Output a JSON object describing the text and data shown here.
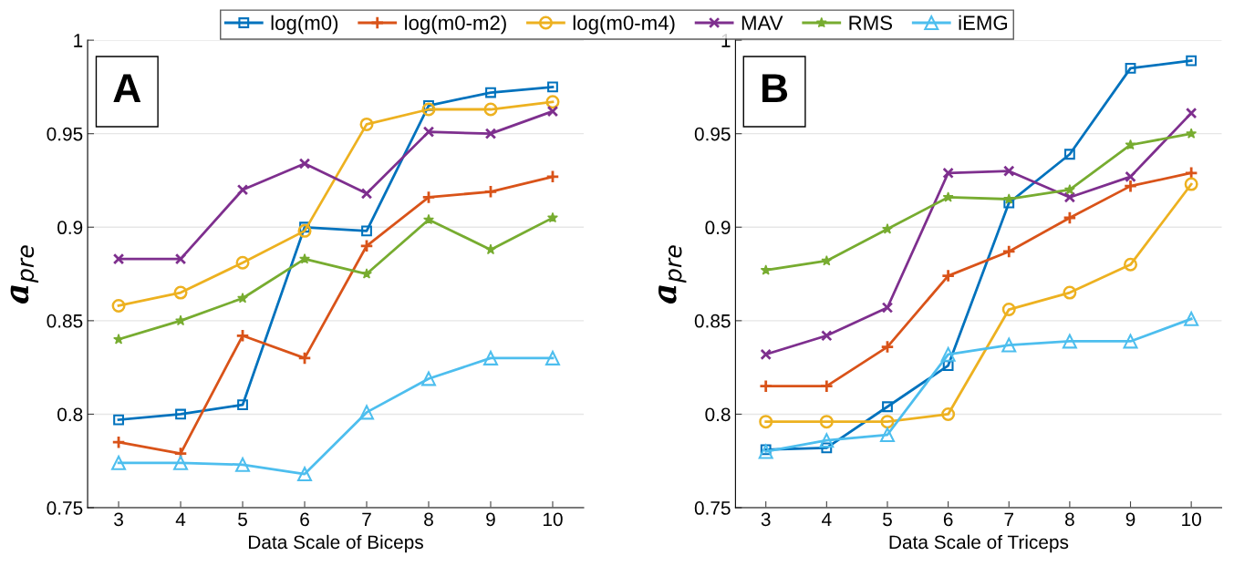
{
  "chart_data": [
    {
      "type": "line",
      "xlabel": "Data Scale of Biceps",
      "ylabel": "a$_{pre}$",
      "annotations": [
        "A"
      ],
      "x": [
        3,
        4,
        5,
        6,
        7,
        8,
        9,
        10
      ],
      "xlim": [
        2.5,
        10.5
      ],
      "xticks": [
        3,
        4,
        5,
        6,
        7,
        8,
        9,
        10
      ],
      "ylim": [
        0.75,
        1
      ],
      "yticks": [
        0.75,
        0.8,
        0.85,
        0.9,
        0.95,
        1
      ],
      "grid": "y",
      "legend": "top",
      "line_style": "solid",
      "series": [
        {
          "name": "log(m0)",
          "color": "#0072bd",
          "marker": "square",
          "values": [
            0.797,
            0.8,
            0.805,
            0.9,
            0.898,
            0.965,
            0.972,
            0.975
          ]
        },
        {
          "name": "log(m0-m2)",
          "color": "#d95319",
          "marker": "plus",
          "values": [
            0.785,
            0.779,
            0.842,
            0.83,
            0.89,
            0.916,
            0.919,
            0.927
          ]
        },
        {
          "name": "log(m0-m4)",
          "color": "#edb120",
          "marker": "circle",
          "values": [
            0.858,
            0.865,
            0.881,
            0.898,
            0.955,
            0.963,
            0.963,
            0.967
          ]
        },
        {
          "name": "MAV",
          "color": "#7e2f8e",
          "marker": "cross",
          "values": [
            0.883,
            0.883,
            0.92,
            0.934,
            0.918,
            0.951,
            0.95,
            0.962
          ]
        },
        {
          "name": "RMS",
          "color": "#77ac30",
          "marker": "star",
          "values": [
            0.84,
            0.85,
            0.862,
            0.883,
            0.875,
            0.904,
            0.888,
            0.905
          ]
        },
        {
          "name": "iEMG",
          "color": "#4dbeee",
          "marker": "triangle",
          "values": [
            0.774,
            0.774,
            0.773,
            0.768,
            0.801,
            0.819,
            0.83,
            0.83
          ]
        }
      ]
    },
    {
      "type": "line",
      "xlabel": "Data Scale of Triceps",
      "ylabel": "a$_{pre}$",
      "annotations": [
        "B"
      ],
      "x": [
        3,
        4,
        5,
        6,
        7,
        8,
        9,
        10
      ],
      "xlim": [
        2.5,
        10.5
      ],
      "xticks": [
        3,
        4,
        5,
        6,
        7,
        8,
        9,
        10
      ],
      "ylim": [
        0.75,
        1
      ],
      "yticks": [
        0.75,
        0.8,
        0.85,
        0.9,
        0.95,
        1
      ],
      "grid": "y",
      "line_style": "solid",
      "series": [
        {
          "color": "#0072bd",
          "marker": "square",
          "values": [
            0.781,
            0.782,
            0.804,
            0.826,
            0.913,
            0.939,
            0.985,
            0.989
          ]
        },
        {
          "color": "#d95319",
          "marker": "plus",
          "values": [
            0.815,
            0.815,
            0.836,
            0.874,
            0.887,
            0.905,
            0.922,
            0.929
          ]
        },
        {
          "color": "#edb120",
          "marker": "circle",
          "values": [
            0.796,
            0.796,
            0.796,
            0.8,
            0.856,
            0.865,
            0.88,
            0.923
          ]
        },
        {
          "color": "#7e2f8e",
          "marker": "cross",
          "values": [
            0.832,
            0.842,
            0.857,
            0.929,
            0.93,
            0.916,
            0.927,
            0.961
          ]
        },
        {
          "color": "#77ac30",
          "marker": "star",
          "values": [
            0.877,
            0.882,
            0.899,
            0.916,
            0.915,
            0.92,
            0.944,
            0.95
          ]
        },
        {
          "color": "#4dbeee",
          "marker": "triangle",
          "values": [
            0.78,
            0.786,
            0.789,
            0.832,
            0.837,
            0.839,
            0.839,
            0.851
          ]
        }
      ]
    }
  ]
}
